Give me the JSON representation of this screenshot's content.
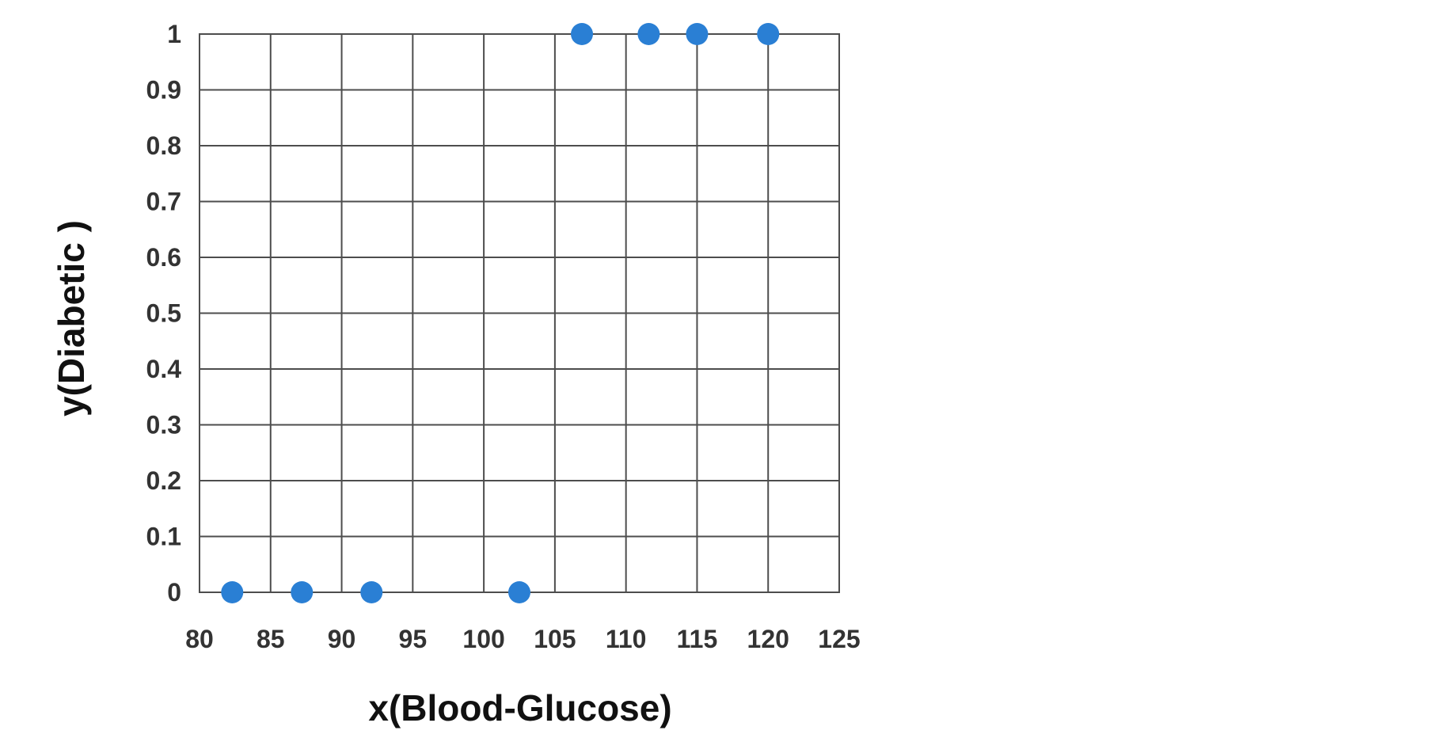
{
  "chart_data": {
    "type": "scatter",
    "title": "",
    "xlabel": "x(Blood-Glucose)",
    "ylabel": "y(Diabetic )",
    "xlim": [
      80,
      125
    ],
    "ylim": [
      0,
      1
    ],
    "x_ticks": [
      "80",
      "85",
      "90",
      "95",
      "100",
      "105",
      "110",
      "115",
      "120",
      "125"
    ],
    "y_ticks": [
      "0",
      "0.1",
      "0.2",
      "0.3",
      "0.4",
      "0.5",
      "0.6",
      "0.7",
      "0.8",
      "0.9",
      "1"
    ],
    "grid": true,
    "point_color": "#2a7fd4",
    "points": [
      {
        "x": 82.3,
        "y": 0
      },
      {
        "x": 87.2,
        "y": 0
      },
      {
        "x": 92.1,
        "y": 0
      },
      {
        "x": 102.5,
        "y": 0
      },
      {
        "x": 106.9,
        "y": 1
      },
      {
        "x": 111.6,
        "y": 1
      },
      {
        "x": 115.0,
        "y": 1
      },
      {
        "x": 120.0,
        "y": 1
      }
    ]
  }
}
